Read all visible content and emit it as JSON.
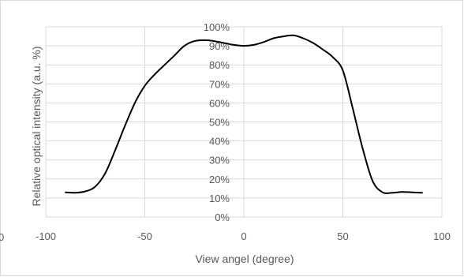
{
  "chart_data": {
    "type": "line",
    "title": "",
    "xlabel": "View angel (degree)",
    "ylabel": "Relative optical intensity (a.u. %)",
    "xlim": [
      -100,
      100
    ],
    "ylim": [
      0,
      100
    ],
    "x_ticks": [
      -100,
      -50,
      0,
      50,
      100
    ],
    "x_tick_labels": [
      "-100",
      "-50",
      "0",
      "50",
      "100"
    ],
    "y_ticks": [
      0,
      10,
      20,
      30,
      40,
      50,
      60,
      70,
      80,
      90,
      100
    ],
    "y_tick_labels": [
      "0%",
      "10%",
      "20%",
      "30%",
      "40%",
      "50%",
      "60%",
      "70%",
      "80%",
      "90%",
      "100%"
    ],
    "grid": true,
    "legend": "none",
    "cropped_label_left": "0",
    "series": [
      {
        "color": "#000000",
        "x": [
          -90,
          -85,
          -80,
          -75,
          -70,
          -65,
          -60,
          -55,
          -50,
          -45,
          -40,
          -35,
          -30,
          -25,
          -20,
          -15,
          -10,
          -5,
          0,
          5,
          10,
          15,
          20,
          25,
          30,
          35,
          40,
          45,
          50,
          55,
          60,
          65,
          70,
          75,
          80,
          85,
          90
        ],
        "y": [
          13,
          12.8,
          13.5,
          16,
          23,
          35,
          48,
          60,
          69,
          75,
          80,
          85,
          90,
          92.5,
          93,
          92.5,
          91.5,
          90.5,
          90,
          90.5,
          92,
          94,
          95,
          95.5,
          94,
          91.5,
          88,
          84,
          77,
          57,
          36,
          19,
          13,
          12.8,
          13.2,
          13,
          12.8
        ]
      }
    ]
  }
}
